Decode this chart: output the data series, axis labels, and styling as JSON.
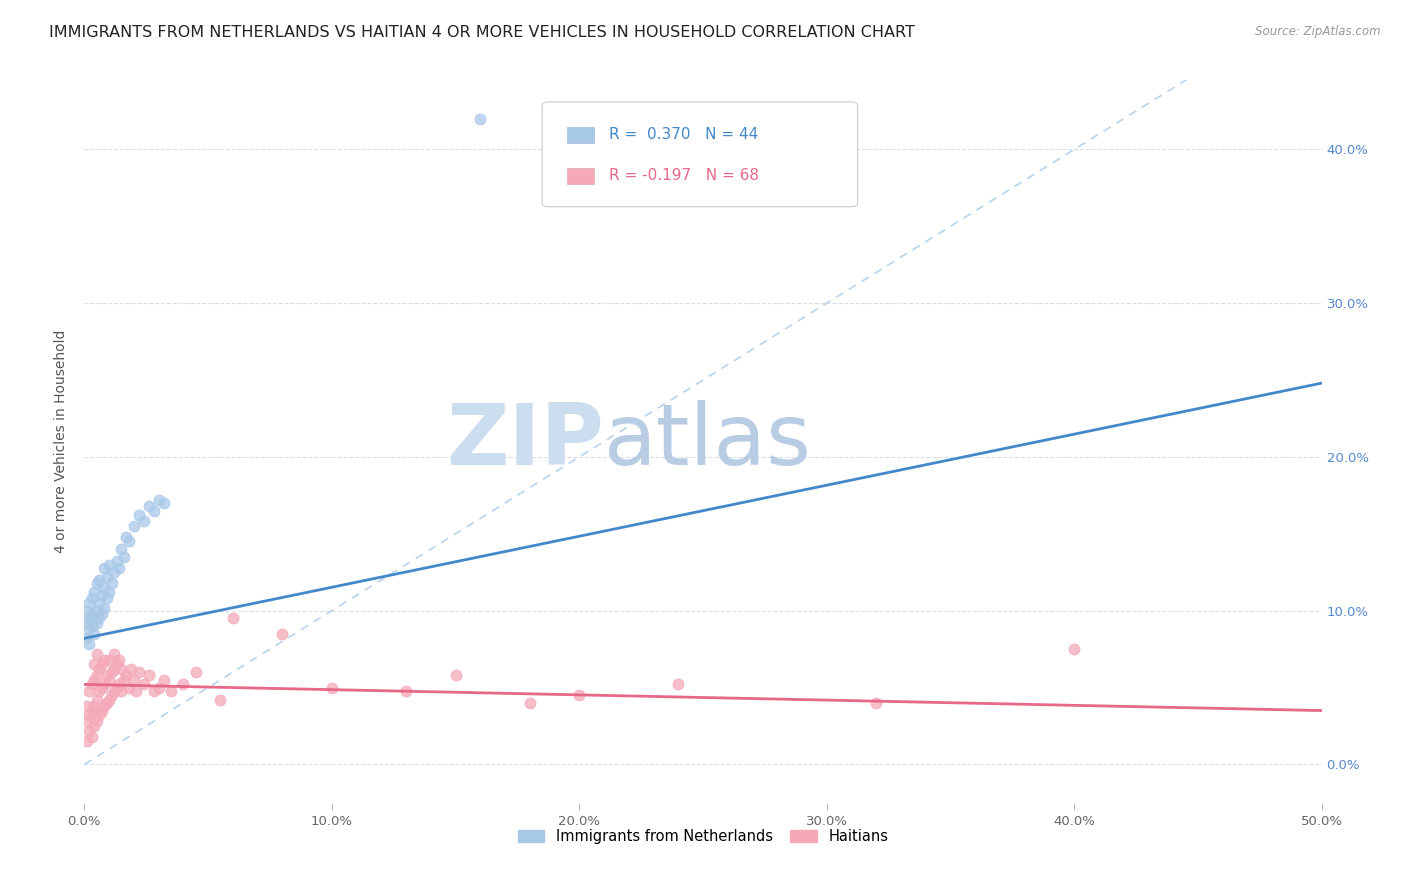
{
  "title": "IMMIGRANTS FROM NETHERLANDS VS HAITIAN 4 OR MORE VEHICLES IN HOUSEHOLD CORRELATION CHART",
  "source": "Source: ZipAtlas.com",
  "ylabel": "4 or more Vehicles in Household",
  "xlim": [
    0.0,
    0.5
  ],
  "ylim": [
    -0.025,
    0.445
  ],
  "right_yticks": [
    0.0,
    0.1,
    0.2,
    0.3,
    0.4
  ],
  "right_yticklabels": [
    "0.0%",
    "10.0%",
    "20.0%",
    "30.0%",
    "40.0%"
  ],
  "xticks": [
    0.0,
    0.1,
    0.2,
    0.3,
    0.4,
    0.5
  ],
  "xticklabels": [
    "0.0%",
    "10.0%",
    "20.0%",
    "30.0%",
    "40.0%",
    "50.0%"
  ],
  "r_netherlands": 0.37,
  "n_netherlands": 44,
  "r_haitian": -0.197,
  "n_haitian": 68,
  "netherlands_color": "#a8c8e8",
  "haitian_color": "#f4a8b8",
  "netherlands_line_color": "#4488cc",
  "haitian_line_color": "#e86888",
  "diagonal_color": "#b8d4ec",
  "background_color": "#ffffff",
  "grid_color": "#d8dfe8",
  "watermark_zip": "ZIP",
  "watermark_atlas": "atlas",
  "legend_label_netherlands": "Immigrants from Netherlands",
  "legend_label_haitian": "Haitians",
  "title_fontsize": 11.5,
  "axis_label_fontsize": 10,
  "tick_fontsize": 9.5,
  "netherlands_points_x": [
    0.001,
    0.001,
    0.001,
    0.002,
    0.002,
    0.002,
    0.002,
    0.003,
    0.003,
    0.003,
    0.004,
    0.004,
    0.004,
    0.005,
    0.005,
    0.005,
    0.006,
    0.006,
    0.006,
    0.007,
    0.007,
    0.008,
    0.008,
    0.008,
    0.009,
    0.009,
    0.01,
    0.01,
    0.011,
    0.012,
    0.013,
    0.014,
    0.015,
    0.016,
    0.017,
    0.018,
    0.02,
    0.022,
    0.024,
    0.026,
    0.028,
    0.03,
    0.032,
    0.16
  ],
  "netherlands_points_y": [
    0.082,
    0.092,
    0.1,
    0.078,
    0.088,
    0.095,
    0.105,
    0.09,
    0.098,
    0.108,
    0.085,
    0.095,
    0.112,
    0.092,
    0.1,
    0.118,
    0.095,
    0.105,
    0.12,
    0.098,
    0.11,
    0.102,
    0.115,
    0.128,
    0.108,
    0.122,
    0.112,
    0.13,
    0.118,
    0.125,
    0.132,
    0.128,
    0.14,
    0.135,
    0.148,
    0.145,
    0.155,
    0.162,
    0.158,
    0.168,
    0.165,
    0.172,
    0.17,
    0.42
  ],
  "haitian_points_x": [
    0.001,
    0.001,
    0.001,
    0.002,
    0.002,
    0.002,
    0.003,
    0.003,
    0.003,
    0.004,
    0.004,
    0.004,
    0.004,
    0.005,
    0.005,
    0.005,
    0.005,
    0.006,
    0.006,
    0.006,
    0.007,
    0.007,
    0.007,
    0.008,
    0.008,
    0.008,
    0.009,
    0.009,
    0.01,
    0.01,
    0.01,
    0.011,
    0.011,
    0.012,
    0.012,
    0.012,
    0.013,
    0.013,
    0.014,
    0.014,
    0.015,
    0.015,
    0.016,
    0.017,
    0.018,
    0.019,
    0.02,
    0.021,
    0.022,
    0.024,
    0.026,
    0.028,
    0.03,
    0.032,
    0.035,
    0.04,
    0.045,
    0.055,
    0.06,
    0.08,
    0.1,
    0.13,
    0.15,
    0.18,
    0.2,
    0.24,
    0.32,
    0.4
  ],
  "haitian_points_y": [
    0.015,
    0.028,
    0.038,
    0.022,
    0.032,
    0.048,
    0.018,
    0.035,
    0.052,
    0.025,
    0.038,
    0.055,
    0.065,
    0.028,
    0.042,
    0.058,
    0.072,
    0.032,
    0.048,
    0.062,
    0.035,
    0.05,
    0.065,
    0.038,
    0.052,
    0.068,
    0.04,
    0.058,
    0.042,
    0.055,
    0.068,
    0.045,
    0.06,
    0.048,
    0.062,
    0.072,
    0.05,
    0.065,
    0.052,
    0.068,
    0.048,
    0.062,
    0.055,
    0.058,
    0.05,
    0.062,
    0.055,
    0.048,
    0.06,
    0.052,
    0.058,
    0.048,
    0.05,
    0.055,
    0.048,
    0.052,
    0.06,
    0.042,
    0.095,
    0.085,
    0.05,
    0.048,
    0.058,
    0.04,
    0.045,
    0.052,
    0.04,
    0.075
  ],
  "nl_line_x0": 0.0,
  "nl_line_y0": 0.082,
  "nl_line_x1": 0.5,
  "nl_line_y1": 0.248,
  "ha_line_x0": 0.0,
  "ha_line_y0": 0.052,
  "ha_line_x1": 0.5,
  "ha_line_y1": 0.035
}
